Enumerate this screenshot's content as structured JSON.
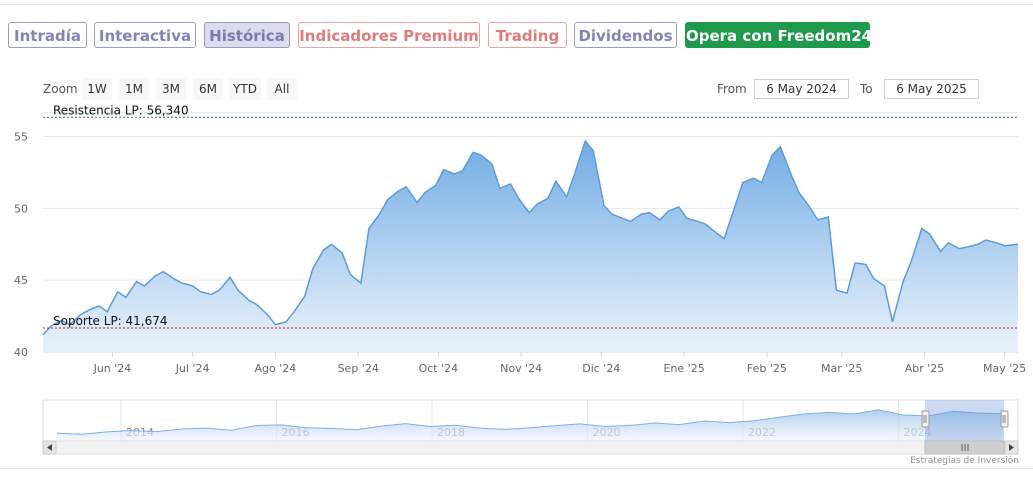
{
  "tabs": [
    {
      "label": "Intradía",
      "style": "purple"
    },
    {
      "label": "Interactiva",
      "style": "purple"
    },
    {
      "label": "Histórica",
      "style": "active"
    },
    {
      "label": "Indicadores Premium",
      "style": "red"
    },
    {
      "label": "Trading",
      "style": "red"
    },
    {
      "label": "Dividendos",
      "style": "purple"
    },
    {
      "label": "Opera con Freedom24",
      "style": "green"
    }
  ],
  "zoom": {
    "label": "Zoom",
    "buttons": [
      "1W",
      "1M",
      "3M",
      "6M",
      "YTD",
      "All"
    ]
  },
  "range": {
    "from_label": "From",
    "from_value": "6 May 2024",
    "to_label": "To",
    "to_value": "6 May 2025"
  },
  "credit": "Estrategias de Inversión",
  "colors": {
    "line": "#5c9bd6",
    "fill_top": "#6aa7e3",
    "fill_bottom": "#e8f1fb",
    "resistance": "#2e7d32",
    "support": "#b71c1c"
  },
  "chart_data": {
    "type": "area",
    "ylim": [
      40,
      56.5
    ],
    "yticks": [
      40,
      45,
      50,
      55
    ],
    "xlim": [
      "2024-05-06",
      "2025-05-06"
    ],
    "xticks": [
      {
        "label": "Jun '24",
        "date": "2024-06-01"
      },
      {
        "label": "Jul '24",
        "date": "2024-07-01"
      },
      {
        "label": "Ago '24",
        "date": "2024-08-01"
      },
      {
        "label": "Sep '24",
        "date": "2024-09-01"
      },
      {
        "label": "Oct '24",
        "date": "2024-10-01"
      },
      {
        "label": "Nov '24",
        "date": "2024-11-01"
      },
      {
        "label": "Dic '24",
        "date": "2024-12-01"
      },
      {
        "label": "Ene '25",
        "date": "2025-01-01"
      },
      {
        "label": "Feb '25",
        "date": "2025-02-01"
      },
      {
        "label": "Mar '25",
        "date": "2025-03-01"
      },
      {
        "label": "Abr '25",
        "date": "2025-04-01"
      },
      {
        "label": "May '25",
        "date": "2025-05-01"
      }
    ],
    "reference_lines": [
      {
        "label": "Resistencia LP: 56,340",
        "value": 56.34,
        "color": "#2e7d32"
      },
      {
        "label": "Soporte LP: 41,674",
        "value": 41.674,
        "color": "#b71c1c"
      }
    ],
    "x": [
      "2024-05-06",
      "2024-05-09",
      "2024-05-13",
      "2024-05-16",
      "2024-05-20",
      "2024-05-23",
      "2024-05-27",
      "2024-05-30",
      "2024-06-03",
      "2024-06-06",
      "2024-06-10",
      "2024-06-13",
      "2024-06-17",
      "2024-06-20",
      "2024-06-24",
      "2024-06-27",
      "2024-07-01",
      "2024-07-04",
      "2024-07-08",
      "2024-07-11",
      "2024-07-15",
      "2024-07-18",
      "2024-07-22",
      "2024-07-25",
      "2024-07-29",
      "2024-08-01",
      "2024-08-05",
      "2024-08-08",
      "2024-08-12",
      "2024-08-15",
      "2024-08-19",
      "2024-08-22",
      "2024-08-26",
      "2024-08-29",
      "2024-09-02",
      "2024-09-05",
      "2024-09-09",
      "2024-09-12",
      "2024-09-16",
      "2024-09-19",
      "2024-09-23",
      "2024-09-26",
      "2024-09-30",
      "2024-10-03",
      "2024-10-07",
      "2024-10-10",
      "2024-10-14",
      "2024-10-17",
      "2024-10-21",
      "2024-10-24",
      "2024-10-28",
      "2024-10-31",
      "2024-11-04",
      "2024-11-07",
      "2024-11-11",
      "2024-11-14",
      "2024-11-18",
      "2024-11-21",
      "2024-11-25",
      "2024-11-28",
      "2024-12-02",
      "2024-12-05",
      "2024-12-09",
      "2024-12-12",
      "2024-12-16",
      "2024-12-19",
      "2024-12-23",
      "2024-12-26",
      "2024-12-30",
      "2025-01-02",
      "2025-01-06",
      "2025-01-09",
      "2025-01-13",
      "2025-01-16",
      "2025-01-20",
      "2025-01-23",
      "2025-01-27",
      "2025-01-30",
      "2025-02-03",
      "2025-02-06",
      "2025-02-10",
      "2025-02-13",
      "2025-02-17",
      "2025-02-20",
      "2025-02-24",
      "2025-02-27",
      "2025-03-03",
      "2025-03-06",
      "2025-03-10",
      "2025-03-13",
      "2025-03-17",
      "2025-03-20",
      "2025-03-24",
      "2025-03-27",
      "2025-03-31",
      "2025-04-03",
      "2025-04-07",
      "2025-04-10",
      "2025-04-14",
      "2025-04-17",
      "2025-04-21",
      "2025-04-24",
      "2025-04-28",
      "2025-05-01",
      "2025-05-06"
    ],
    "y": [
      41.2,
      41.8,
      42.2,
      41.9,
      42.6,
      42.9,
      43.2,
      42.8,
      44.2,
      43.8,
      44.9,
      44.6,
      45.3,
      45.6,
      45.1,
      44.8,
      44.6,
      44.2,
      44.0,
      44.3,
      45.2,
      44.3,
      43.6,
      43.3,
      42.6,
      41.9,
      42.1,
      42.8,
      43.9,
      45.8,
      47.1,
      47.5,
      46.9,
      45.4,
      44.8,
      48.6,
      49.6,
      50.6,
      51.2,
      51.5,
      50.4,
      51.1,
      51.6,
      52.7,
      52.4,
      52.6,
      53.9,
      53.7,
      53.1,
      51.4,
      51.7,
      50.7,
      49.7,
      50.3,
      50.7,
      51.9,
      50.8,
      52.4,
      54.7,
      54.0,
      50.2,
      49.6,
      49.3,
      49.1,
      49.6,
      49.7,
      49.2,
      49.8,
      50.1,
      49.3,
      49.1,
      48.9,
      48.3,
      47.9,
      50.1,
      51.8,
      52.1,
      51.8,
      53.7,
      54.3,
      52.4,
      51.1,
      50.1,
      49.2,
      49.4,
      44.3,
      44.1,
      46.2,
      46.1,
      45.1,
      44.6,
      42.1,
      44.9,
      46.3,
      48.6,
      48.2,
      47.0,
      47.6,
      47.2,
      47.3,
      47.5,
      47.8,
      47.6,
      47.4,
      47.5
    ]
  },
  "navigator": {
    "year_labels": [
      "2014",
      "2016",
      "2018",
      "2020",
      "2022",
      "2024"
    ],
    "y": [
      41.5,
      41.2,
      41.9,
      42.3,
      42.0,
      42.8,
      43.1,
      42.4,
      43.9,
      44.1,
      43.2,
      43.0,
      42.6,
      43.7,
      44.5,
      43.6,
      44.0,
      43.1,
      42.7,
      43.2,
      43.8,
      44.4,
      43.6,
      43.9,
      44.7,
      44.2,
      45.3,
      44.8,
      45.4,
      46.5,
      47.5,
      48.0,
      47.5,
      48.8,
      47.2,
      46.9,
      48.3,
      47.8,
      47.6
    ]
  }
}
